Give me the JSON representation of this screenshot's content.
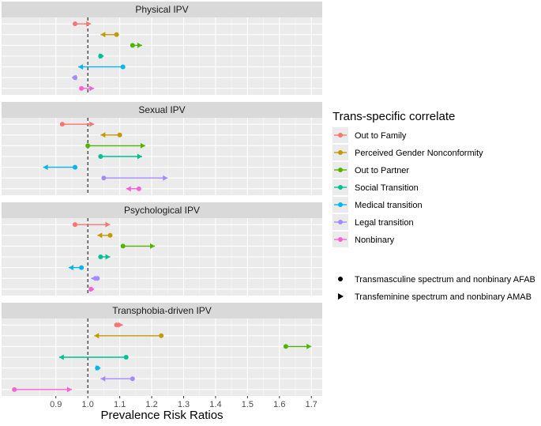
{
  "chart_data": {
    "type": "dumbbell",
    "x_label": "Prevalence Risk Ratios",
    "xlim": [
      0.73,
      1.734
    ],
    "xticks": [
      0.9,
      {
        "value": 1,
        "label": "1.0"
      },
      1.1,
      1.2,
      1.3,
      1.4,
      1.5,
      1.6,
      1.7
    ],
    "reference_line": 1,
    "grid": true,
    "legend_title": "Trans-specific correlate",
    "categories": [
      "Out to Family",
      "Perceived Gender Nonconformity",
      "Out to Partner",
      "Social Transition",
      "Medical transition",
      "Legal transition",
      "Nonbinary"
    ],
    "colors": [
      "#F8766D",
      "#C49A00",
      "#53B400",
      "#00C094",
      "#00B6EB",
      "#A58AFF",
      "#FB61D7"
    ],
    "groups": [
      {
        "name": "Transmasculine spectrum and nonbinary AFAB",
        "marker": "circle"
      },
      {
        "name": "Transfeminine spectrum and nonbinary AMAB",
        "marker": "arrow"
      }
    ],
    "panels": [
      {
        "title": "Physical IPV",
        "series": [
          {
            "values": [
              0.96,
              1.09,
              1.14,
              1.04,
              1.11,
              0.96,
              0.98
            ]
          },
          {
            "values": [
              1.01,
              1.04,
              1.17,
              1.05,
              0.97,
              0.95,
              1.02
            ]
          }
        ]
      },
      {
        "title": "Sexual IPV",
        "series": [
          {
            "values": [
              0.92,
              1.1,
              1.0,
              1.04,
              0.96,
              1.05,
              1.16
            ]
          },
          {
            "values": [
              1.02,
              1.04,
              1.18,
              1.17,
              0.86,
              1.25,
              1.12
            ]
          }
        ]
      },
      {
        "title": "Psychological IPV",
        "series": [
          {
            "values": [
              0.96,
              1.07,
              1.11,
              1.04,
              0.98,
              1.03,
              1.01
            ]
          },
          {
            "values": [
              1.07,
              1.03,
              1.21,
              1.07,
              0.94,
              1.01,
              1.02
            ]
          }
        ]
      },
      {
        "title": "Transphobia-driven IPV",
        "series": [
          {
            "values": [
              1.09,
              1.23,
              1.62,
              1.12,
              1.03,
              1.14,
              0.77
            ]
          },
          {
            "values": [
              1.11,
              1.02,
              1.7,
              0.91,
              1.04,
              1.04,
              0.95
            ]
          }
        ]
      }
    ]
  }
}
